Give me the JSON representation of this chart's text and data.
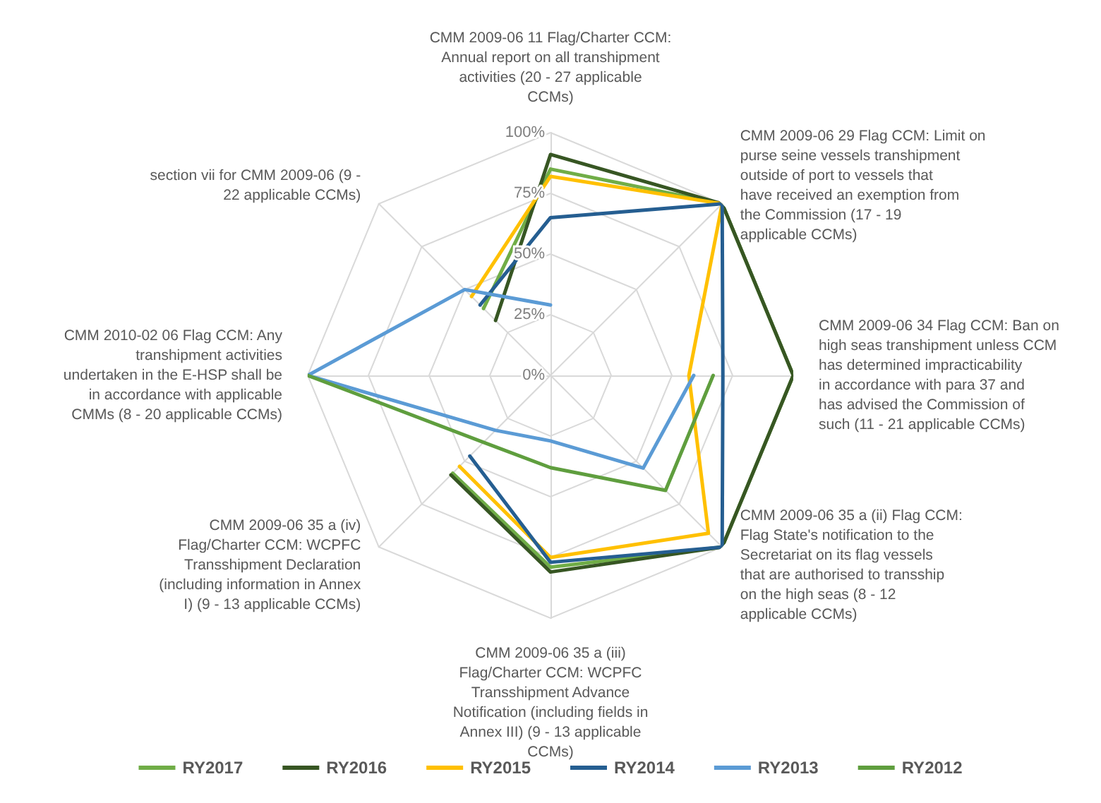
{
  "chart_data": {
    "type": "radar",
    "categories": [
      "CMM 2009-06 11 Flag/Charter CCM: Annual report on all transhipment activities (20 - 27 applicable CCMs)",
      "CMM 2009-06 29 Flag CCM: Limit on purse seine vessels transhipment outside of port to vessels that have received an exemption from the Commission (17 - 19 applicable CCMs)",
      "CMM 2009-06 34 Flag CCM: Ban on high seas transhipment unless CCM has determined impracticability in accordance with para 37 and has advised the Commission of such (11 - 21 applicable CCMs)",
      "CMM 2009-06 35 a (ii) Flag CCM: Flag State's notification to the Secretariat on its flag vessels that are authorised to transship on the high seas (8 - 12 applicable CCMs)",
      "CMM 2009-06 35 a (iii) Flag/Charter CCM: WCPFC Transshipment Advance Notification (including fields in Annex III) (9 - 13 applicable CCMs)",
      "CMM 2009-06 35 a (iv) Flag/Charter CCM: WCPFC Transshipment Declaration (including information in Annex I) (9 - 13 applicable CCMs)",
      "CMM 2010-02 06 Flag CCM: Any transhipment activities undertaken in the E-HSP shall be in accordance with applicable CMMs (8 - 20 applicable CCMs)",
      "section vii for CMM 2009-06 (9 - 22 applicable CCMs)"
    ],
    "series": [
      {
        "name": "RY2017",
        "color": "#70ad47",
        "values": [
          85,
          100,
          100,
          100,
          79,
          57,
          null,
          39
        ]
      },
      {
        "name": "RY2016",
        "color": "#375623",
        "values": [
          91,
          100,
          100,
          100,
          81,
          58,
          null,
          32
        ]
      },
      {
        "name": "RY2015",
        "color": "#ffc000",
        "values": [
          82,
          100,
          57,
          92,
          75,
          53,
          null,
          46
        ]
      },
      {
        "name": "RY2014",
        "color": "#255e91",
        "values": [
          65,
          100,
          71,
          100,
          77,
          47,
          null,
          41
        ]
      },
      {
        "name": "RY2013",
        "color": "#5b9bd5",
        "values": [
          29,
          null,
          59,
          54,
          27,
          32,
          100,
          50
        ]
      },
      {
        "name": "RY2012",
        "color": "#5f9e3e",
        "values": [
          null,
          null,
          67,
          67,
          38,
          39,
          100,
          null
        ]
      }
    ],
    "ylim": [
      0,
      100
    ],
    "yticks": [
      {
        "value": 0,
        "label": "0%"
      },
      {
        "value": 25,
        "label": "25%"
      },
      {
        "value": 50,
        "label": "50%"
      },
      {
        "value": 75,
        "label": "75%"
      },
      {
        "value": 100,
        "label": "100%"
      }
    ],
    "grid": true,
    "legend": "bottom",
    "marker": "none",
    "line_style": "solid"
  }
}
